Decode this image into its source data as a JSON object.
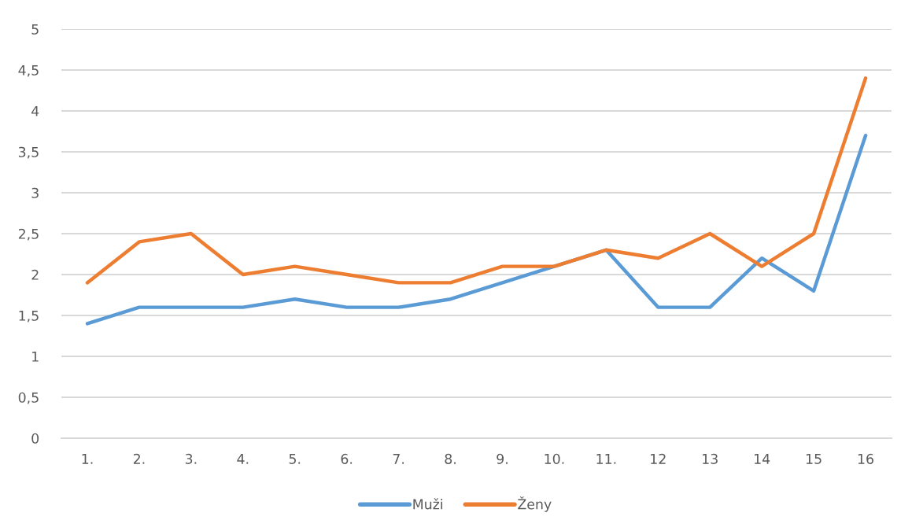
{
  "chart_data": {
    "type": "line",
    "categories": [
      "1.",
      "2.",
      "3.",
      "4.",
      "5.",
      "6.",
      "7.",
      "8.",
      "9.",
      "10.",
      "11.",
      "12",
      "13",
      "14",
      "15",
      "16"
    ],
    "series": [
      {
        "name": "Muži",
        "color": "#5b9bd5",
        "values": [
          1.4,
          1.6,
          1.6,
          1.6,
          1.7,
          1.6,
          1.6,
          1.7,
          1.9,
          2.1,
          2.3,
          1.6,
          1.6,
          2.2,
          1.8,
          3.7
        ]
      },
      {
        "name": "Ženy",
        "color": "#ed7d31",
        "values": [
          1.9,
          2.4,
          2.5,
          2.0,
          2.1,
          2.0,
          1.9,
          1.9,
          2.1,
          2.1,
          2.3,
          2.2,
          2.5,
          2.1,
          2.5,
          4.4
        ]
      }
    ],
    "ylim": [
      0,
      5
    ],
    "yticks": [
      0,
      {
        "value": 0.5,
        "label": "0,5"
      },
      1,
      {
        "value": 1.5,
        "label": "1,5"
      },
      2,
      {
        "value": 2.5,
        "label": "2,5"
      },
      3,
      {
        "value": 3.5,
        "label": "3,5"
      },
      4,
      {
        "value": 4.5,
        "label": "4,5"
      },
      5
    ],
    "grid": "y",
    "legend": "bottom"
  }
}
